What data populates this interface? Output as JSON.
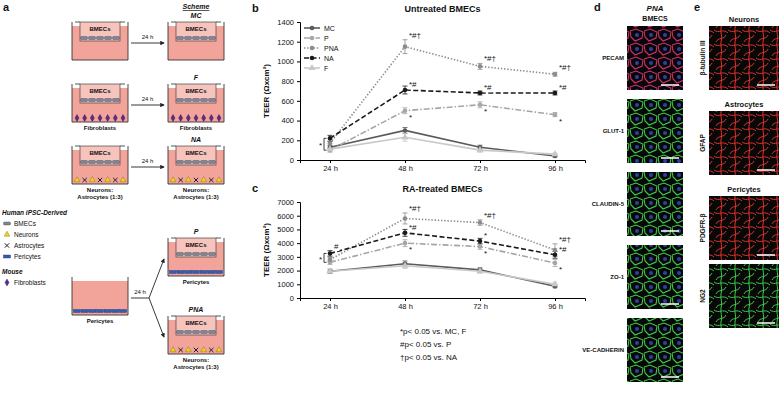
{
  "chart_data": [
    {
      "type": "line",
      "panel_label": "b",
      "title": "Untreated BMECs",
      "y_label": "TEER (Ωxcm²)",
      "categories": [
        "24 h",
        "48 h",
        "72 h",
        "96 h"
      ],
      "ylim": [
        0,
        1400
      ],
      "yticks": [
        0,
        200,
        400,
        600,
        800,
        1000,
        1200,
        1400
      ],
      "legend": "upper left",
      "series": [
        {
          "name": "MC",
          "color": "#5a5a5a",
          "line_style": "solid",
          "marker": "circle",
          "values": [
            130,
            300,
            130,
            40
          ],
          "errors": [
            15,
            30,
            20,
            10
          ]
        },
        {
          "name": "P",
          "color": "#a6a6a6",
          "line_style": "dashdot",
          "marker": "circle",
          "values": [
            100,
            500,
            560,
            460
          ],
          "errors": [
            20,
            30,
            30,
            20
          ],
          "significance": [
            null,
            "*",
            "*",
            "*"
          ]
        },
        {
          "name": "PNA",
          "color": "#8c8c8c",
          "line_style": "dotted",
          "marker": "circle",
          "values": [
            170,
            1150,
            950,
            870
          ],
          "errors": [
            20,
            70,
            30,
            20
          ],
          "significance": [
            null,
            "*#†",
            "*#†",
            "*#†"
          ]
        },
        {
          "name": "NA",
          "color": "#1a1a1a",
          "line_style": "dashed",
          "marker": "circle",
          "values": [
            220,
            710,
            680,
            680
          ],
          "errors": [
            30,
            40,
            20,
            20
          ],
          "significance": [
            null,
            "*#",
            "*#",
            "*#"
          ]
        },
        {
          "name": "F",
          "color": "#c8c8c8",
          "line_style": "solid",
          "marker": "triangle",
          "values": [
            110,
            230,
            100,
            60
          ],
          "errors": [
            10,
            40,
            20,
            10
          ]
        }
      ],
      "bracket": {
        "text": "*",
        "category": "24 h",
        "series": [
          "P",
          "PNA",
          "NA"
        ]
      }
    },
    {
      "type": "line",
      "panel_label": "c",
      "title": "RA-treated BMECs",
      "y_label": "TEER (Ωxcm²)",
      "categories": [
        "24 h",
        "48 h",
        "72 h",
        "96 h"
      ],
      "ylim": [
        0,
        7000
      ],
      "yticks": [
        0,
        1000,
        2000,
        3000,
        4000,
        5000,
        6000,
        7000
      ],
      "series": [
        {
          "name": "MC",
          "color": "#5a5a5a",
          "line_style": "solid",
          "marker": "circle",
          "values": [
            1950,
            2500,
            2050,
            850
          ],
          "errors": [
            150,
            200,
            150,
            100
          ]
        },
        {
          "name": "P",
          "color": "#a6a6a6",
          "line_style": "dashdot",
          "marker": "circle",
          "values": [
            2600,
            4000,
            3750,
            2550
          ],
          "errors": [
            150,
            250,
            200,
            250
          ],
          "significance": [
            null,
            "*",
            "*",
            "*"
          ]
        },
        {
          "name": "PNA",
          "color": "#8c8c8c",
          "line_style": "dotted",
          "marker": "circle",
          "values": [
            2800,
            5800,
            5500,
            3500
          ],
          "errors": [
            150,
            400,
            200,
            450
          ],
          "significance": [
            null,
            "*#†",
            "*#†",
            "*#†"
          ]
        },
        {
          "name": "NA",
          "color": "#1a1a1a",
          "line_style": "dashed",
          "marker": "circle",
          "values": [
            3250,
            4750,
            4150,
            3150
          ],
          "errors": [
            200,
            250,
            200,
            250
          ],
          "significance": [
            "#",
            "*#",
            "*",
            "*#"
          ]
        },
        {
          "name": "F",
          "color": "#c8c8c8",
          "line_style": "solid",
          "marker": "triangle",
          "values": [
            1950,
            2350,
            1950,
            1000
          ],
          "errors": [
            150,
            200,
            150,
            150
          ]
        }
      ],
      "bracket": {
        "text": "*",
        "category": "24 h",
        "series": [
          "P",
          "PNA",
          "NA"
        ]
      }
    }
  ],
  "footnotes": [
    "*p< 0.05 vs. MC, F",
    "#p< 0.05 vs. P",
    "†p< 0.05 vs. NA"
  ],
  "panel_a": {
    "label": "a",
    "source": "Human iPSC-Derived",
    "key": [
      "BMECs",
      "Neurons",
      "Astrocytes",
      "Pericytes"
    ],
    "source2": "Mouse",
    "key2": [
      "Fibroblasts"
    ],
    "scheme": "Scheme",
    "rows": [
      {
        "start": {
          "insert": "BMECs"
        },
        "time": "24 h",
        "results": [
          {
            "name": "MC",
            "insert": "BMECs"
          }
        ]
      },
      {
        "start": {
          "insert": "BMECs",
          "cells": [
            "Fibroblasts"
          ],
          "caption": "Fibroblasts"
        },
        "time": "24 h",
        "results": [
          {
            "name": "F",
            "insert": "BMECs",
            "cells": [
              "Fibroblasts"
            ],
            "caption": "Fibroblasts"
          }
        ]
      },
      {
        "start": {
          "insert": "BMECs",
          "cells": [
            "Neurons",
            "Astrocytes"
          ],
          "caption": "Neurons: Astrocytes (1:3)"
        },
        "time": "24 h",
        "results": [
          {
            "name": "NA",
            "insert": "BMECs",
            "cells": [
              "Neurons",
              "Astrocytes"
            ],
            "caption": "Neurons: Astrocytes (1:3)"
          }
        ]
      },
      {
        "start": {
          "cells": [
            "Pericytes"
          ],
          "caption": "Pericytes"
        },
        "time": "24 h",
        "results": [
          {
            "name": "P",
            "insert": "BMECs",
            "cells": [
              "Pericytes"
            ],
            "caption": "Pericytes"
          },
          {
            "name": "PNA",
            "insert": "BMECs",
            "cells": [
              "Neurons",
              "Astrocytes"
            ],
            "caption": "Neurons: Astrocytes (1:3)"
          }
        ]
      }
    ]
  },
  "panel_d": {
    "label": "d",
    "condition": "PNA",
    "cells": "BMECS",
    "images": [
      {
        "label": "PECAM",
        "color": "#d0306e"
      },
      {
        "label": "GLUT-1",
        "color": "#3fc84a"
      },
      {
        "label": "CLAUDIN-5",
        "color": "#3fc84a"
      },
      {
        "label": "ZO-1",
        "color": "#3fc84a"
      },
      {
        "label": "VE-CADHERIN",
        "color": "#3fc84a"
      }
    ]
  },
  "panel_e": {
    "label": "e",
    "groups": [
      {
        "title": "Neurons",
        "images": [
          {
            "label": "β-tubulin III",
            "color": "#e0302a"
          }
        ]
      },
      {
        "title": "Astrocytes",
        "images": [
          {
            "label": "GFAP",
            "color": "#e0302a"
          }
        ]
      },
      {
        "title": "Pericytes",
        "images": [
          {
            "label": "PDGFR-β",
            "color": "#e0302a"
          },
          {
            "label": "NG2",
            "color": "#3fc84a"
          }
        ]
      }
    ]
  }
}
